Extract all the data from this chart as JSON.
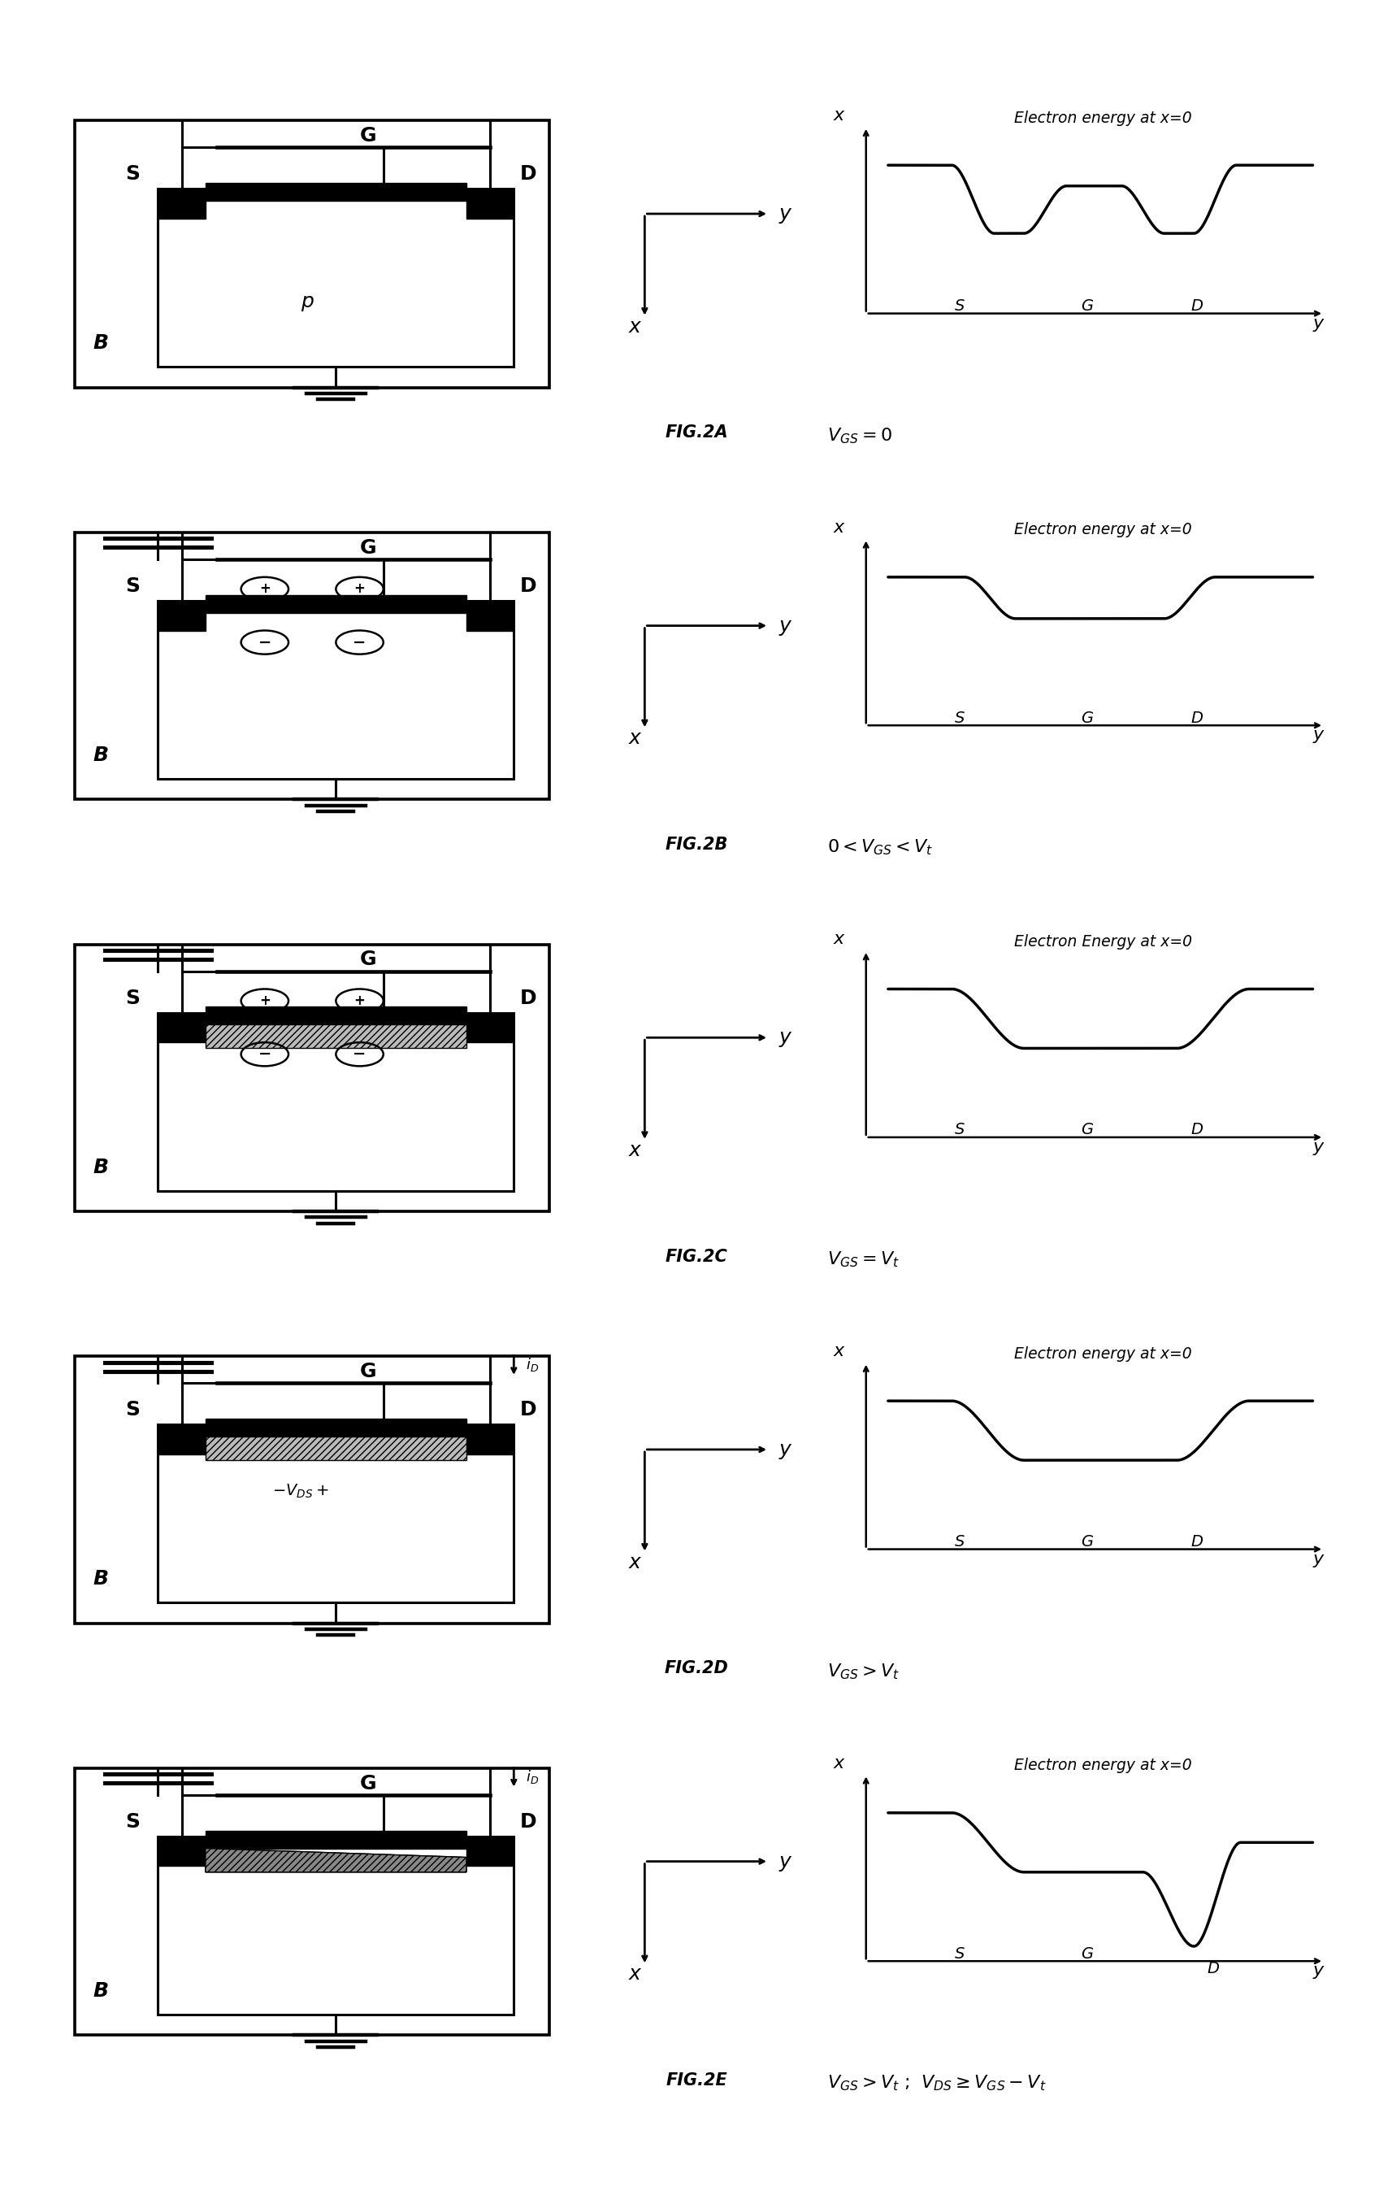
{
  "n_rows": 5,
  "fig_labels": [
    "FIG.2A",
    "FIG.2B",
    "FIG.2C",
    "FIG.2D",
    "FIG.2E"
  ],
  "equations": [
    "$V_{GS}=0$",
    "$0 < V_{GS}< V_t$",
    "$V_{GS} = V_t$",
    "$V_{GS} > V_t$",
    "$V_{GS} > V_t$ ;  $V_{DS} \\geq V_{GS}-V_t$"
  ],
  "graph_titles": [
    "Electron energy at x=0",
    "Electron energy at x=0",
    "Electron Energy at x=0",
    "Electron energy at x=0",
    "Electron energy at x=0"
  ],
  "curve_types": [
    "double_well",
    "single_well_shallow",
    "single_well_flat",
    "single_well_slight",
    "asymmetric_well"
  ],
  "row_features": [
    {
      "has_capacitor": false,
      "has_charges": false,
      "has_channel_hatch": false,
      "has_id_arrow": false,
      "has_vds": false,
      "has_p_label": true,
      "channel_taper": false
    },
    {
      "has_capacitor": true,
      "has_charges": true,
      "has_channel_hatch": false,
      "has_id_arrow": false,
      "has_vds": false,
      "has_p_label": false,
      "channel_taper": false
    },
    {
      "has_capacitor": true,
      "has_charges": true,
      "has_channel_hatch": true,
      "has_id_arrow": false,
      "has_vds": false,
      "has_p_label": false,
      "channel_taper": false
    },
    {
      "has_capacitor": true,
      "has_charges": false,
      "has_channel_hatch": true,
      "has_id_arrow": true,
      "has_vds": true,
      "has_p_label": false,
      "channel_taper": false
    },
    {
      "has_capacitor": true,
      "has_charges": false,
      "has_channel_hatch": false,
      "has_id_arrow": true,
      "has_vds": false,
      "has_p_label": false,
      "channel_taper": true
    }
  ]
}
